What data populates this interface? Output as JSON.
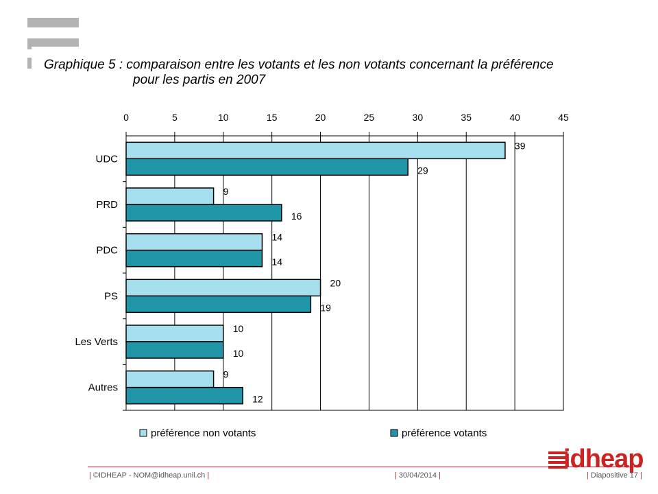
{
  "slide": {
    "title_line1": "Graphique 5 : comparaison entre les votants et les non votants concernant la préférence",
    "title_line2": "pour les partis en 2007"
  },
  "footer": {
    "left": "©IDHEAP - NOM@idheap.unil.ch",
    "center": "30/04/2014",
    "right": "Diapositive 17",
    "logo_text": "idheap",
    "accent_color": "#cc2222"
  },
  "chart_data": {
    "type": "bar",
    "orientation": "horizontal",
    "categories": [
      "UDC",
      "PRD",
      "PDC",
      "PS",
      "Les Verts",
      "Autres"
    ],
    "series": [
      {
        "name": "préférence non votants",
        "values": [
          39,
          9,
          14,
          20,
          10,
          9
        ],
        "color": "#a6e0ee"
      },
      {
        "name": "préférence votants",
        "values": [
          29,
          16,
          14,
          19,
          10,
          12
        ],
        "color": "#2196a8"
      }
    ],
    "x_ticks": [
      "0",
      "5",
      "10",
      "15",
      "20",
      "25",
      "30",
      "35",
      "40",
      "45"
    ],
    "xlim": [
      0,
      45
    ],
    "x_axis_position": "top",
    "grid": true,
    "legend": "bottom",
    "data_labels": true
  }
}
